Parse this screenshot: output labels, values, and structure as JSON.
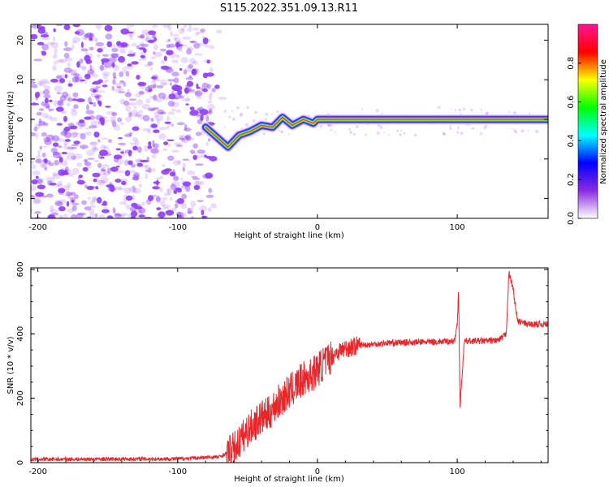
{
  "title": "S115.2022.351.09.13.R11",
  "colors": {
    "snr_line": "#e8262a",
    "spectrum_noise": "#8f3cff",
    "spectrum_ridge": "#ff2a2a",
    "axis": "#000000"
  },
  "chart_data": [
    {
      "type": "heatmap",
      "title": "S115.2022.351.09.13.R11",
      "xlabel": "Height of straight line (km)",
      "ylabel": "Frequency (Hz)",
      "xlim": [
        -205,
        165
      ],
      "ylim": [
        -25,
        24
      ],
      "xticks": [
        -200,
        -100,
        0,
        100
      ],
      "yticks": [
        -20,
        -10,
        0,
        10,
        20
      ],
      "colorbar": {
        "label": "Normalized spectral amplitude",
        "range": [
          0,
          1
        ],
        "ticks": [
          0.0,
          0.2,
          0.4,
          0.6,
          0.8
        ],
        "colormap": [
          "#ffffff",
          "#8a2be2",
          "#0000ff",
          "#00ffff",
          "#00ff00",
          "#ffff00",
          "#ff0000",
          "#ff1493"
        ]
      },
      "noise_region_x": [
        -205,
        -75
      ],
      "ridge": [
        {
          "x": -80,
          "y": -2.0
        },
        {
          "x": -72,
          "y": -4.5
        },
        {
          "x": -64,
          "y": -7.0
        },
        {
          "x": -56,
          "y": -4.0
        },
        {
          "x": -48,
          "y": -3.0
        },
        {
          "x": -40,
          "y": -1.5
        },
        {
          "x": -32,
          "y": -2.0
        },
        {
          "x": -25,
          "y": 0.5
        },
        {
          "x": -18,
          "y": -1.5
        },
        {
          "x": -10,
          "y": 0.0
        },
        {
          "x": -3,
          "y": -1.0
        },
        {
          "x": 0,
          "y": 0.0
        },
        {
          "x": 50,
          "y": 0.0
        },
        {
          "x": 100,
          "y": 0.0
        },
        {
          "x": 165,
          "y": 0.0
        }
      ]
    },
    {
      "type": "line",
      "xlabel": "Height of straight line (km)",
      "ylabel": "SNR (10 * v/v)",
      "xlim": [
        -205,
        165
      ],
      "ylim": [
        0,
        605
      ],
      "xticks": [
        -200,
        -100,
        0,
        100
      ],
      "yticks": [
        0,
        200,
        400,
        600
      ],
      "series": [
        {
          "x": [
            -205,
            -100,
            -70,
            -60,
            -55,
            -50,
            -45,
            -40,
            -35,
            -30,
            -25,
            -20,
            -15,
            -10,
            -5,
            0,
            5,
            10,
            15,
            20,
            25,
            30,
            40,
            50,
            60,
            70,
            80,
            90,
            95,
            98,
            100,
            101,
            102,
            105,
            110,
            120,
            130,
            135,
            137,
            140,
            143,
            150,
            160,
            165
          ],
          "values": [
            10,
            12,
            18,
            40,
            70,
            100,
            120,
            140,
            150,
            180,
            200,
            220,
            240,
            260,
            270,
            290,
            310,
            330,
            345,
            355,
            360,
            365,
            368,
            372,
            373,
            374,
            375,
            376,
            377,
            378,
            430,
            540,
            170,
            375,
            378,
            378,
            380,
            400,
            590,
            540,
            440,
            430,
            430,
            430
          ]
        }
      ]
    }
  ]
}
